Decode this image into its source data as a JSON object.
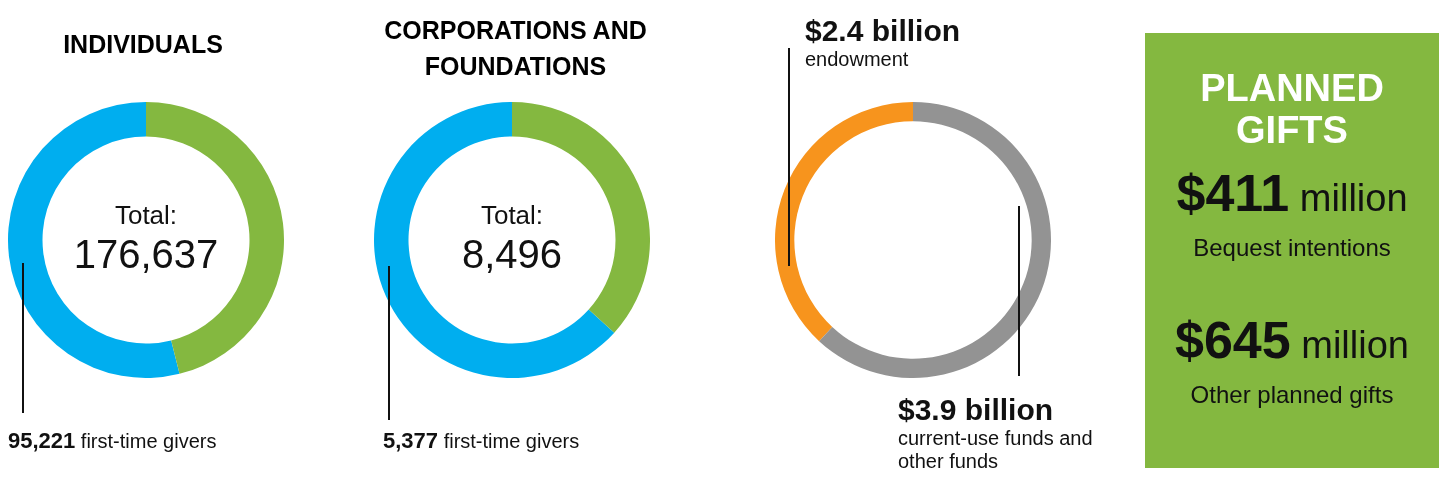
{
  "chart_data": [
    {
      "type": "donut",
      "title": "INDIVIDUALS",
      "categories": [
        "first-time givers",
        null
      ],
      "values": [
        95221,
        81416
      ],
      "colors": [
        "#00aeef",
        "#84b840"
      ],
      "value_labels": [
        "95,221",
        null
      ],
      "annotations": [
        "Total:",
        "176,637"
      ]
    },
    {
      "type": "donut",
      "title": "CORPORATIONS AND FOUNDATIONS",
      "categories": [
        "first-time givers",
        null
      ],
      "values": [
        5377,
        3119
      ],
      "colors": [
        "#00aeef",
        "#84b840"
      ],
      "value_labels": [
        "5,377",
        null
      ],
      "annotations": [
        "Total:",
        "8,496"
      ]
    },
    {
      "type": "donut",
      "categories": [
        "endowment",
        "current-use funds and other funds"
      ],
      "values": [
        2.4,
        3.9
      ],
      "colors": [
        "#f7941d",
        "#939393"
      ],
      "value_labels": [
        "$2.4 billion",
        "$3.9 billion"
      ]
    },
    {
      "type": "other",
      "title": "PLANNED GIFTS",
      "annotations": [
        "$411 million",
        "Bequest intentions",
        "$645 million",
        "Other planned gifts"
      ]
    }
  ]
}
